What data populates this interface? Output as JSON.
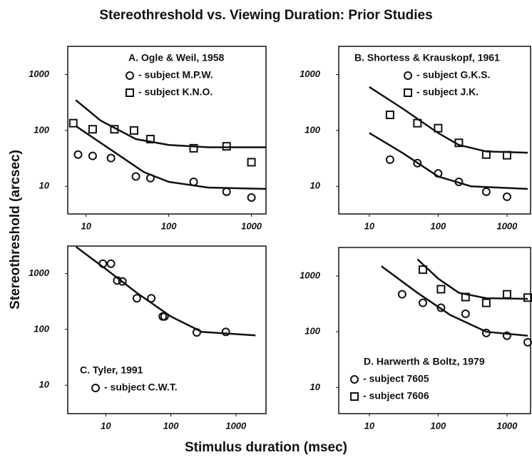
{
  "title": "Stereothreshold vs. Viewing Duration: Prior Studies",
  "x_label": "Stimulus duration (msec)",
  "y_label": "Stereothreshold (arcsec)",
  "chart_data": [
    {
      "type": "scatter",
      "title": "A.  Ogle & Weil, 1958",
      "xscale": "log",
      "yscale": "log",
      "xlim": [
        6,
        1500
      ],
      "ylim": [
        3.2,
        3200
      ],
      "xticks": [
        10,
        100,
        1000
      ],
      "yticks": [
        10,
        100,
        1000
      ],
      "series": [
        {
          "name": "- subject M.P.W.",
          "marker": "circle",
          "color": "#111111",
          "x": [
            8,
            12,
            20,
            40,
            60,
            200,
            500,
            1000
          ],
          "values": [
            37,
            35,
            32,
            15,
            14,
            12,
            8,
            6.3
          ]
        },
        {
          "name": "- subject K.N.O.",
          "marker": "square",
          "color": "#111111",
          "x": [
            7,
            12,
            22,
            38,
            60,
            200,
            500,
            1000
          ],
          "values": [
            135,
            105,
            105,
            100,
            70,
            48,
            52,
            27
          ]
        }
      ],
      "fits": [
        {
          "x": [
            7.5,
            15,
            40,
            100,
            300,
            1500
          ],
          "values": [
            350,
            150,
            70,
            55,
            50,
            50
          ]
        },
        {
          "x": [
            7.5,
            20,
            50,
            100,
            300,
            1500
          ],
          "values": [
            120,
            45,
            18,
            12,
            9.5,
            9
          ]
        }
      ]
    },
    {
      "type": "scatter",
      "title": "B.  Shortess & Krauskopf, 1961",
      "xscale": "log",
      "yscale": "log",
      "xlim": [
        3.6,
        2200
      ],
      "ylim": [
        3.2,
        3200
      ],
      "xticks": [
        10,
        100,
        1000
      ],
      "yticks": [
        10,
        100,
        1000
      ],
      "series": [
        {
          "name": "- subject G.K.S.",
          "marker": "circle",
          "color": "#111111",
          "x": [
            20,
            50,
            100,
            200,
            500,
            1000
          ],
          "values": [
            30,
            26,
            17,
            12,
            8,
            6.5
          ]
        },
        {
          "name": "- subject J.K.",
          "marker": "square",
          "color": "#111111",
          "x": [
            20,
            50,
            100,
            200,
            500,
            1000
          ],
          "values": [
            190,
            135,
            110,
            60,
            37,
            36
          ]
        }
      ],
      "fits": [
        {
          "x": [
            10,
            30,
            100,
            200,
            500,
            2000
          ],
          "values": [
            600,
            250,
            90,
            55,
            42,
            40
          ]
        },
        {
          "x": [
            10,
            30,
            100,
            300,
            2000
          ],
          "values": [
            90,
            40,
            15,
            10,
            9
          ]
        }
      ]
    },
    {
      "type": "scatter",
      "title": "C.  Tyler, 1991",
      "xscale": "log",
      "yscale": "log",
      "xlim": [
        2.6,
        2900
      ],
      "ylim": [
        3.1,
        3100
      ],
      "xticks": [
        10,
        100,
        1000
      ],
      "yticks": [
        10,
        100,
        1000
      ],
      "series": [
        {
          "name": "- subject C.W.T.",
          "marker": "circle",
          "color": "#111111",
          "x": [
            9,
            12,
            15,
            18,
            30,
            50,
            75,
            80,
            250,
            700
          ],
          "values": [
            1500,
            1500,
            750,
            720,
            360,
            360,
            170,
            170,
            88,
            90
          ]
        }
      ],
      "fits": [
        {
          "x": [
            3.5,
            10,
            30,
            100,
            300,
            2000
          ],
          "values": [
            3000,
            1200,
            450,
            170,
            90,
            78
          ]
        }
      ]
    },
    {
      "type": "scatter",
      "title": "D.  Harwerth & Boltz, 1979",
      "xscale": "log",
      "yscale": "log",
      "xlim": [
        3.6,
        2200
      ],
      "ylim": [
        3.4,
        3250
      ],
      "xticks": [
        10,
        100,
        1000
      ],
      "yticks": [
        10,
        100,
        1000
      ],
      "series": [
        {
          "name": "- subject 7605",
          "marker": "circle",
          "color": "#111111",
          "x": [
            30,
            60,
            110,
            250,
            500,
            1000,
            2000
          ],
          "values": [
            470,
            330,
            270,
            210,
            95,
            85,
            65
          ]
        },
        {
          "name": "- subject 7606",
          "marker": "square",
          "color": "#111111",
          "x": [
            60,
            110,
            250,
            500,
            1000,
            2000
          ],
          "values": [
            1300,
            580,
            420,
            330,
            470,
            410
          ]
        }
      ],
      "fits": [
        {
          "x": [
            15,
            50,
            150,
            500,
            2000
          ],
          "values": [
            1500,
            500,
            200,
            100,
            85
          ]
        },
        {
          "x": [
            50,
            100,
            200,
            500,
            2000
          ],
          "values": [
            2000,
            900,
            500,
            400,
            390
          ]
        }
      ]
    }
  ]
}
